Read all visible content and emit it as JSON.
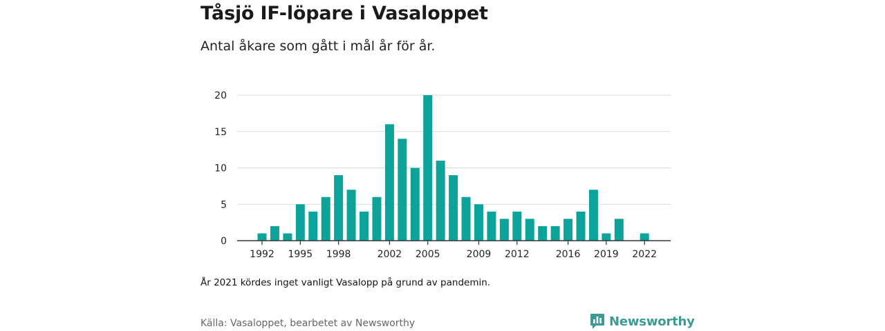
{
  "title": "Tåsjö IF-löpare i Vasaloppet",
  "subtitle": "Antal åkare som gått i mål år för år.",
  "note": "År 2021 kördes inget vanligt Vasalopp på grund av pandemin.",
  "source": "Källa: Vasaloppet, bearbetet av Newsworthy",
  "brand": {
    "name": "Newsworthy",
    "icon": "newsworthy-logo-icon",
    "color": "#3a9b94"
  },
  "colors": {
    "bar": "#0ba39a",
    "grid": "#d9d9d9",
    "axis": "#333333"
  },
  "chart_data": {
    "type": "bar",
    "x": [
      1992,
      1993,
      1994,
      1995,
      1996,
      1997,
      1998,
      1999,
      2000,
      2001,
      2002,
      2003,
      2004,
      2005,
      2006,
      2007,
      2008,
      2009,
      2010,
      2011,
      2012,
      2013,
      2014,
      2015,
      2016,
      2017,
      2018,
      2019,
      2020,
      2021,
      2022
    ],
    "values": [
      1,
      2,
      1,
      5,
      4,
      6,
      9,
      7,
      4,
      6,
      16,
      14,
      10,
      20,
      11,
      9,
      6,
      5,
      4,
      3,
      4,
      3,
      2,
      2,
      3,
      4,
      7,
      1,
      3,
      0,
      1
    ],
    "x_ticks": [
      1992,
      1995,
      1998,
      2002,
      2005,
      2009,
      2012,
      2016,
      2019,
      2022
    ],
    "y_ticks": [
      0,
      5,
      10,
      15,
      20
    ],
    "ylim": [
      0,
      20
    ],
    "grid": "horizontal",
    "legend": "none"
  }
}
